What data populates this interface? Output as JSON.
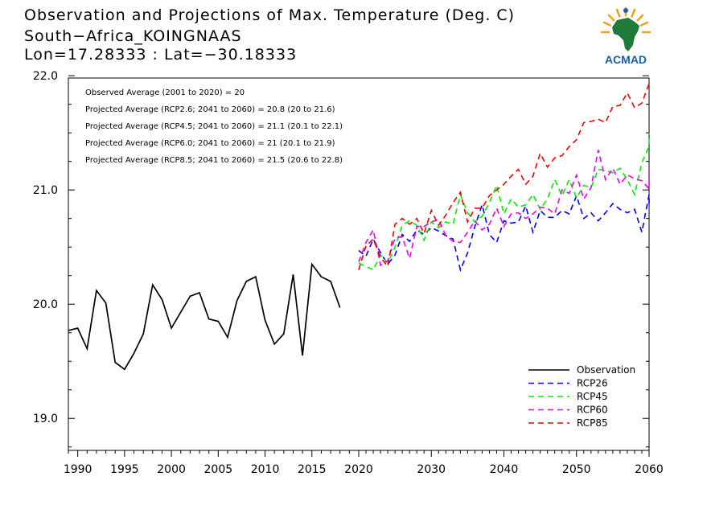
{
  "header": {
    "title": "Observation and Projections of Max. Temperature (Deg. C)",
    "location": "South−Africa_KOINGNAAS",
    "coords": "Lon=17.28333 : Lat=−30.18333"
  },
  "logo": {
    "text": "ACMAD",
    "icon": "africa-map-logo",
    "color": "#1f7a3a",
    "accent": "#f0a020",
    "text_color": "#1a5fa8"
  },
  "annotations": [
    "Observed Average (2001 to 2020) = 20",
    "Projected Average (RCP2.6; 2041 to 2060) = 20.8 (20 to 21.6)",
    "Projected Average (RCP4.5; 2041 to 2060) = 21.1 (20.1 to 22.1)",
    "Projected Average (RCP6.0; 2041 to 2060) = 21 (20.1 to 21.9)",
    "Projected Average (RCP8.5; 2041 to 2060) = 21.5 (20.6 to 22.8)"
  ],
  "chart_data": {
    "type": "line",
    "xlim": [
      1989,
      2060
    ],
    "ylim": [
      18.72,
      21.98
    ],
    "x_ticks": [
      "1990",
      "1995",
      "2000",
      "2005",
      "2010",
      "2015",
      "2020",
      "2030",
      "2040",
      "2050",
      "2060"
    ],
    "y_ticks": [
      "19.0",
      "20.0",
      "21.0",
      "22.0"
    ],
    "legend_position": "bottom-right",
    "series": [
      {
        "name": "Observation",
        "color": "#000000",
        "dashed": false,
        "start": 1989,
        "values": [
          19.77,
          19.79,
          19.61,
          20.12,
          20.01,
          19.49,
          19.43,
          19.57,
          19.74,
          20.17,
          20.04,
          19.79,
          19.93,
          20.07,
          20.1,
          19.87,
          19.85,
          19.71,
          20.03,
          20.2,
          20.24,
          19.86,
          19.65,
          19.74,
          20.26,
          19.55,
          20.35,
          20.24,
          20.2,
          19.97
        ]
      },
      {
        "name": "RCP26",
        "color": "#0000ee",
        "dashed": true,
        "start": 2020,
        "values": [
          20.47,
          20.42,
          20.57,
          20.45,
          20.35,
          20.43,
          20.61,
          20.55,
          20.65,
          20.61,
          20.67,
          20.64,
          20.6,
          20.57,
          20.3,
          20.45,
          20.68,
          20.87,
          20.61,
          20.54,
          20.73,
          20.71,
          20.72,
          20.86,
          20.63,
          20.82,
          20.76,
          20.76,
          20.82,
          20.79,
          20.95,
          20.75,
          20.8,
          20.73,
          20.8,
          20.88,
          20.83,
          20.8,
          20.83,
          20.63,
          20.96,
          20.88
        ]
      },
      {
        "name": "RCP45",
        "color": "#00ee00",
        "dashed": true,
        "start": 2020,
        "values": [
          20.36,
          20.33,
          20.3,
          20.43,
          20.36,
          20.5,
          20.69,
          20.73,
          20.69,
          20.56,
          20.72,
          20.67,
          20.72,
          20.7,
          20.96,
          20.8,
          20.72,
          20.77,
          20.89,
          21.04,
          20.79,
          20.92,
          20.85,
          20.87,
          20.96,
          20.83,
          20.92,
          21.09,
          20.95,
          21.09,
          20.93,
          21.04,
          21.02,
          21.18,
          21.17,
          21.15,
          21.19,
          21.09,
          20.96,
          21.24,
          21.38,
          21.5
        ]
      },
      {
        "name": "RCP60",
        "color": "#ee00ee",
        "dashed": true,
        "start": 2020,
        "values": [
          20.37,
          20.54,
          20.65,
          20.34,
          20.38,
          20.58,
          20.59,
          20.4,
          20.68,
          20.68,
          20.72,
          20.74,
          20.6,
          20.55,
          20.54,
          20.63,
          20.73,
          20.65,
          20.7,
          20.84,
          20.68,
          20.79,
          20.8,
          20.75,
          20.79,
          20.85,
          20.84,
          20.79,
          21.0,
          20.97,
          21.13,
          20.92,
          21.02,
          21.35,
          21.09,
          21.19,
          21.05,
          21.13,
          21.1,
          21.08,
          21.01,
          21.16
        ]
      },
      {
        "name": "RCP85",
        "color": "#ee0000",
        "dashed": true,
        "start": 2020,
        "values": [
          20.3,
          20.51,
          20.57,
          20.41,
          20.33,
          20.7,
          20.75,
          20.7,
          20.75,
          20.62,
          20.82,
          20.69,
          20.78,
          20.89,
          20.98,
          20.72,
          20.84,
          20.84,
          20.95,
          21.0,
          21.05,
          21.12,
          21.18,
          21.05,
          21.12,
          21.32,
          21.2,
          21.28,
          21.3,
          21.38,
          21.44,
          21.59,
          21.6,
          21.62,
          21.59,
          21.73,
          21.74,
          21.85,
          21.72,
          21.76,
          21.93,
          21.93
        ]
      }
    ]
  }
}
